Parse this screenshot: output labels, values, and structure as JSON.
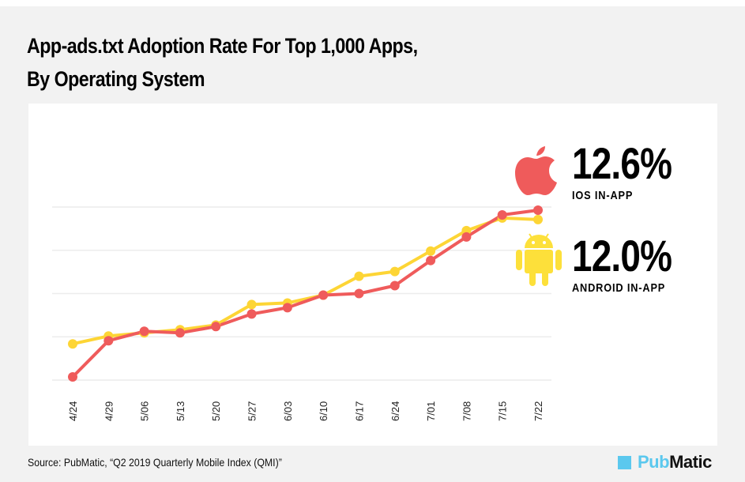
{
  "header": {
    "title_line1": "App-ads.txt Adoption Rate For Top 1,000 Apps,",
    "title_line2": "By Operating System"
  },
  "legend": {
    "ios": {
      "value": "12.6%",
      "label": "IOS IN-APP",
      "icon": "apple-icon"
    },
    "android": {
      "value": "12.0%",
      "label": "ANDROID IN-APP",
      "icon": "android-icon"
    }
  },
  "footer": {
    "source": "Source: PubMatic, “Q2 2019 Quarterly Mobile Index (QMI)”",
    "logo_part1": "Pub",
    "logo_part2": "Matic"
  },
  "colors": {
    "ios": "#ef5b5b",
    "android": "#fdd535",
    "grid": "#ececec",
    "brand": "#5bc8ee"
  },
  "chart_data": {
    "type": "line",
    "title": "App-ads.txt Adoption Rate For Top 1,000 Apps, By Operating System",
    "xlabel": "",
    "ylabel": "",
    "categories": [
      "4/24",
      "4/29",
      "5/06",
      "5/13",
      "5/20",
      "5/27",
      "6/03",
      "6/10",
      "6/17",
      "6/24",
      "7/01",
      "7/08",
      "7/15",
      "7/22"
    ],
    "series": [
      {
        "name": "iOS In-App",
        "color": "#ef5b5b",
        "values": [
          2.0,
          4.3,
          4.9,
          4.8,
          5.2,
          6.0,
          6.4,
          7.2,
          7.3,
          7.8,
          9.4,
          10.9,
          12.3,
          12.6
        ]
      },
      {
        "name": "Android In-App",
        "color": "#fdd535",
        "values": [
          4.1,
          4.6,
          4.8,
          5.0,
          5.3,
          6.6,
          6.7,
          7.2,
          8.4,
          8.7,
          10.0,
          11.3,
          12.1,
          12.0
        ]
      }
    ],
    "ylim": [
      1.8,
      12.8
    ],
    "gridlines": [
      1.8,
      4.55,
      7.3,
      10.05,
      12.8
    ],
    "grid": true,
    "y_tick_labels_visible": false,
    "legend_position": "right"
  }
}
